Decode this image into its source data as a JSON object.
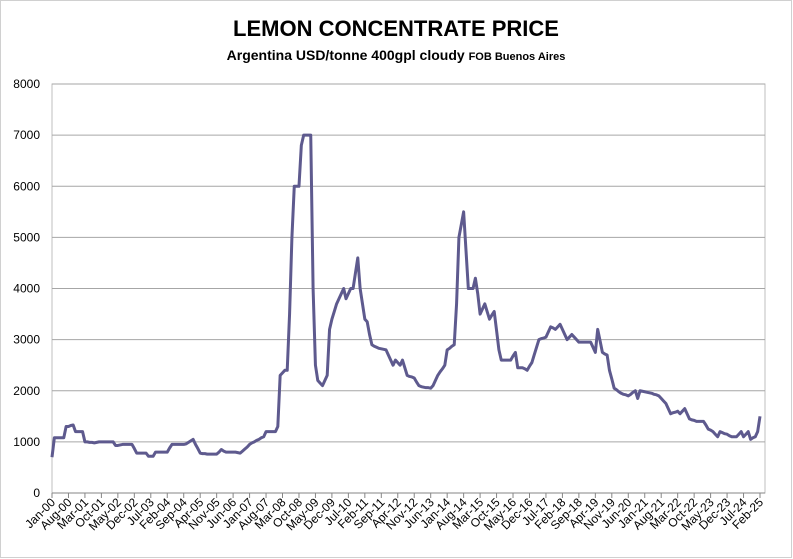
{
  "chart_data": {
    "type": "line",
    "title": "LEMON CONCENTRATE PRICE",
    "subtitle": "Argentina USD/tonne 400gpl cloudy",
    "subtitle_suffix": "FOB Buenos Aires",
    "categories": [
      "Jan-00",
      null,
      null,
      null,
      null,
      null,
      null,
      "Aug-00",
      null,
      null,
      null,
      null,
      null,
      null,
      "Mar-01",
      null,
      null,
      null,
      null,
      null,
      null,
      "Oct-01",
      null,
      null,
      null,
      null,
      null,
      null,
      "May-02",
      null,
      null,
      null,
      null,
      null,
      null,
      "Dec-02",
      null,
      null,
      null,
      null,
      null,
      null,
      "Jul-03",
      null,
      null,
      null,
      null,
      null,
      null,
      "Feb-04",
      null,
      null,
      null,
      null,
      null,
      null,
      "Sep-04",
      null,
      null,
      null,
      null,
      null,
      null,
      "Apr-05",
      null,
      null,
      null,
      null,
      null,
      null,
      "Nov-05",
      null,
      null,
      null,
      null,
      null,
      null,
      "Jun-06",
      null,
      null,
      null,
      null,
      null,
      null,
      "Jan-07",
      null,
      null,
      null,
      null,
      null,
      null,
      "Aug-07",
      null,
      null,
      null,
      null,
      null,
      null,
      "Mar-08",
      null,
      null,
      null,
      null,
      null,
      null,
      "Oct-08",
      null,
      null,
      null,
      null,
      null,
      null,
      "May-09",
      null,
      null,
      null,
      null,
      null,
      null,
      "Dec-09",
      null,
      null,
      null,
      null,
      null,
      null,
      "Jul-10",
      null,
      null,
      null,
      null,
      null,
      null,
      "Feb-11",
      null,
      null,
      null,
      null,
      null,
      null,
      "Sep-11",
      null,
      null,
      null,
      null,
      null,
      null,
      "Apr-12",
      null,
      null,
      null,
      null,
      null,
      null,
      "Nov-12",
      null,
      null,
      null,
      null,
      null,
      null,
      "Jun-13",
      null,
      null,
      null,
      null,
      null,
      null,
      "Jan-14",
      null,
      null,
      null,
      null,
      null,
      null,
      "Aug-14",
      null,
      null,
      null,
      null,
      null,
      null,
      "Mar-15",
      null,
      null,
      null,
      null,
      null,
      null,
      "Oct-15",
      null,
      null,
      null,
      null,
      null,
      null,
      "May-16",
      null,
      null,
      null,
      null,
      null,
      null,
      "Dec-16",
      null,
      null,
      null,
      null,
      null,
      null,
      "Jul-17",
      null,
      null,
      null,
      null,
      null,
      null,
      "Feb-18",
      null,
      null,
      null,
      null,
      null,
      null,
      "Sep-18",
      null,
      null,
      null,
      null,
      null,
      null,
      "Apr-19",
      null,
      null,
      null,
      null,
      null,
      null,
      "Nov-19",
      null,
      null,
      null,
      null,
      null,
      null,
      "Jun-20",
      null,
      null,
      null,
      null,
      null,
      null,
      "Jan-21",
      null,
      null,
      null,
      null,
      null,
      null,
      "Aug-21",
      null,
      null,
      null,
      null,
      null,
      null,
      "Mar-22",
      null,
      null,
      null,
      null,
      null,
      null,
      "Oct-22",
      null,
      null,
      null,
      null,
      null,
      null,
      "May-23",
      null,
      null,
      null,
      null,
      null,
      null,
      "Dec-23",
      null,
      null,
      null,
      null,
      null,
      null,
      "Jul-24",
      null,
      null,
      null,
      null,
      null,
      null,
      "Feb-25"
    ],
    "series": [
      {
        "name": "Lemon concentrate price",
        "color": "#5e5a8e",
        "values": [
          700,
          1080,
          1080,
          1080,
          1080,
          1080,
          1300,
          1300,
          1320,
          1330,
          1200,
          1200,
          1200,
          1200,
          1000,
          1000,
          990,
          990,
          980,
          990,
          1000,
          1000,
          1000,
          1000,
          1000,
          1000,
          1000,
          930,
          930,
          940,
          950,
          950,
          950,
          950,
          950,
          870,
          780,
          780,
          780,
          780,
          780,
          720,
          720,
          720,
          800,
          800,
          800,
          800,
          800,
          800,
          880,
          950,
          950,
          950,
          950,
          950,
          950,
          960,
          990,
          1020,
          1050,
          950,
          870,
          780,
          770,
          770,
          760,
          760,
          760,
          760,
          760,
          800,
          850,
          820,
          800,
          800,
          800,
          800,
          800,
          790,
          780,
          820,
          860,
          900,
          950,
          980,
          1000,
          1030,
          1050,
          1080,
          1100,
          1200,
          1200,
          1200,
          1200,
          1200,
          1300,
          2300,
          2350,
          2400,
          2400,
          3500,
          5000,
          6000,
          6000,
          6000,
          6800,
          7000,
          7000,
          7000,
          7000,
          4000,
          2500,
          2200,
          2150,
          2100,
          2200,
          2300,
          3200,
          3400,
          3550,
          3700,
          3800,
          3900,
          4000,
          3800,
          3900,
          4000,
          4000,
          4300,
          4600,
          4000,
          3700,
          3400,
          3350,
          3100,
          2900,
          2870,
          2850,
          2830,
          2820,
          2810,
          2800,
          2700,
          2600,
          2500,
          2600,
          2550,
          2500,
          2600,
          2450,
          2300,
          2280,
          2270,
          2250,
          2170,
          2100,
          2080,
          2070,
          2060,
          2060,
          2050,
          2100,
          2200,
          2300,
          2370,
          2430,
          2500,
          2800,
          2830,
          2870,
          2900,
          3700,
          5000,
          5250,
          5500,
          4750,
          4000,
          4000,
          4000,
          4200,
          3900,
          3500,
          3600,
          3700,
          3550,
          3400,
          3480,
          3550,
          3180,
          2800,
          2600,
          2600,
          2600,
          2600,
          2600,
          2680,
          2750,
          2450,
          2450,
          2450,
          2430,
          2400,
          2480,
          2550,
          2700,
          2850,
          3000,
          3020,
          3030,
          3050,
          3150,
          3250,
          3230,
          3200,
          3250,
          3300,
          3200,
          3100,
          3000,
          3050,
          3100,
          3050,
          3000,
          2950,
          2950,
          2950,
          2950,
          2950,
          2950,
          2850,
          2750,
          3200,
          2980,
          2750,
          2720,
          2700,
          2400,
          2230,
          2050,
          2020,
          1980,
          1950,
          1930,
          1920,
          1900,
          1930,
          1970,
          2000,
          1850,
          2000,
          1990,
          1980,
          1970,
          1960,
          1950,
          1930,
          1920,
          1900,
          1850,
          1800,
          1750,
          1650,
          1550,
          1570,
          1580,
          1600,
          1550,
          1600,
          1650,
          1550,
          1450,
          1430,
          1420,
          1400,
          1400,
          1400,
          1400,
          1330,
          1250,
          1230,
          1200,
          1150,
          1100,
          1200,
          1180,
          1160,
          1150,
          1120,
          1100,
          1100,
          1100,
          1150,
          1200,
          1100,
          1150,
          1200,
          1050,
          1080,
          1100,
          1200,
          1500
        ]
      }
    ],
    "ylim": [
      0,
      8000
    ],
    "yticks": [
      0,
      1000,
      2000,
      3000,
      4000,
      5000,
      6000,
      7000,
      8000
    ],
    "grid": true
  }
}
